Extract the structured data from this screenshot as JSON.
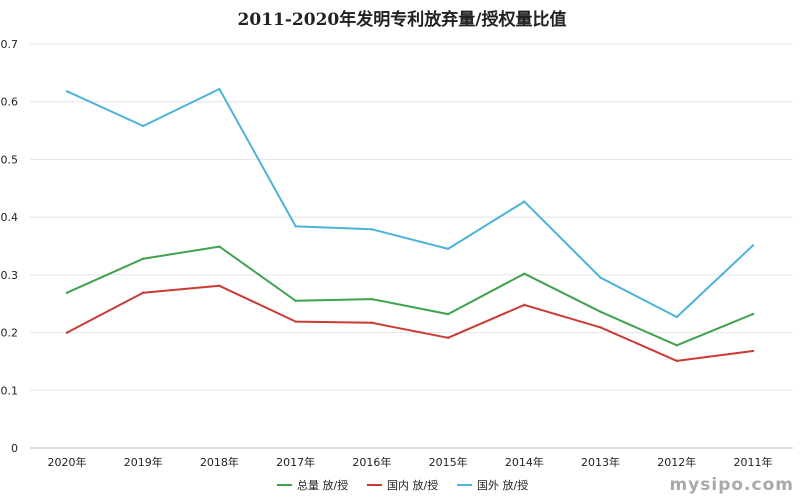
{
  "chart_data": {
    "type": "line",
    "title": "2011-2020年发明专利放弃量/授权量比值",
    "categories": [
      "2020年",
      "2019年",
      "2018年",
      "2017年",
      "2016年",
      "2015年",
      "2014年",
      "2013年",
      "2012年",
      "2011年"
    ],
    "ylim": [
      0,
      0.7
    ],
    "yticks": [
      "0",
      "0.1",
      "0.2",
      "0.3",
      "0.4",
      "0.5",
      "0.6",
      "0.7"
    ],
    "grid": true,
    "legend_position": "bottom",
    "series": [
      {
        "name": "总量 放/授",
        "color": "#3fa34d",
        "values": [
          0.269,
          0.328,
          0.349,
          0.255,
          0.258,
          0.232,
          0.302,
          0.236,
          0.178,
          0.232
        ]
      },
      {
        "name": "国内 放/授",
        "color": "#cc3b33",
        "values": [
          0.2,
          0.269,
          0.281,
          0.219,
          0.217,
          0.191,
          0.248,
          0.209,
          0.151,
          0.168
        ]
      },
      {
        "name": "国外 放/授",
        "color": "#4cb3d9",
        "values": [
          0.618,
          0.558,
          0.622,
          0.384,
          0.379,
          0.345,
          0.427,
          0.295,
          0.227,
          0.351
        ]
      }
    ]
  },
  "watermark": "mysipo.com"
}
